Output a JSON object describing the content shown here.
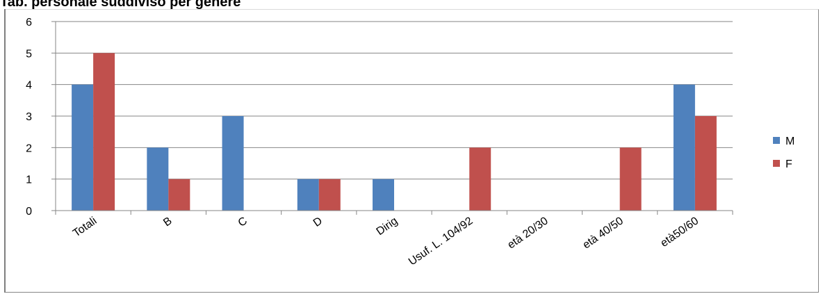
{
  "page": {
    "title": "Tab. personale suddiviso per genere"
  },
  "chart_data": {
    "type": "bar",
    "categories": [
      "Totali",
      "B",
      "C",
      "D",
      "Dirig",
      "Usuf. L. 104/92",
      "età 20/30",
      "età 40/50",
      "età50/60"
    ],
    "series": [
      {
        "name": "M",
        "color": "#4f81bd",
        "values": [
          4,
          2,
          3,
          1,
          1,
          0,
          0,
          0,
          4
        ]
      },
      {
        "name": "F",
        "color": "#c0504d",
        "values": [
          5,
          1,
          0,
          1,
          0,
          2,
          0,
          2,
          3
        ]
      }
    ],
    "ylim": [
      0,
      6
    ],
    "yticks": [
      "0",
      "1",
      "2",
      "3",
      "4",
      "5",
      "6"
    ],
    "grid": true,
    "legend_position": "right",
    "title": "",
    "xlabel": "",
    "ylabel": ""
  }
}
